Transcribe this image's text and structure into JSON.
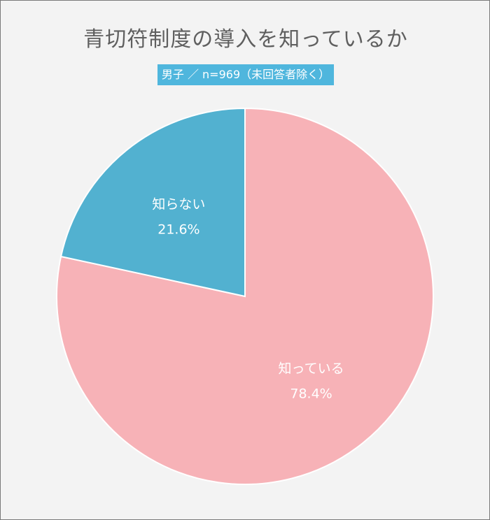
{
  "title": "青切符制度の導入を知っているか",
  "subtitle": "男子 ／ n=969（未回答者除く）",
  "chart_data": {
    "type": "pie",
    "title": "青切符制度の導入を知っているか",
    "subtitle": "男子 ／ n=969（未回答者除く）",
    "start": "12 o'clock, clockwise",
    "slices": [
      {
        "label": "知っている",
        "value": 78.4,
        "value_label": "78.4%",
        "color": "#f7b2b7"
      },
      {
        "label": "知らない",
        "value": 21.6,
        "value_label": "21.6%",
        "color": "#52b1d0"
      }
    ]
  }
}
